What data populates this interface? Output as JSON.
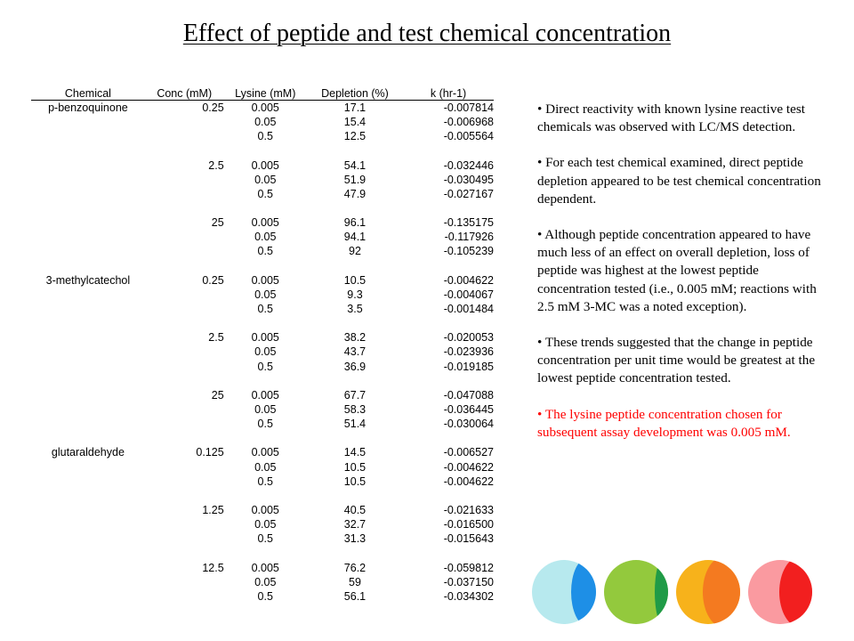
{
  "title": "Effect of peptide and test chemical concentration",
  "table": {
    "headers": [
      "Chemical",
      "Conc (mM)",
      "Lysine (mM)",
      "Depletion (%)",
      "k (hr-1)"
    ],
    "groups": [
      {
        "chemical": "p-benzoquinone",
        "conc": "0.25",
        "rows": [
          [
            "0.005",
            "17.1",
            "-0.007814"
          ],
          [
            "0.05",
            "15.4",
            "-0.006968"
          ],
          [
            "0.5",
            "12.5",
            "-0.005564"
          ]
        ]
      },
      {
        "chemical": "",
        "conc": "2.5",
        "rows": [
          [
            "0.005",
            "54.1",
            "-0.032446"
          ],
          [
            "0.05",
            "51.9",
            "-0.030495"
          ],
          [
            "0.5",
            "47.9",
            "-0.027167"
          ]
        ]
      },
      {
        "chemical": "",
        "conc": "25",
        "rows": [
          [
            "0.005",
            "96.1",
            "-0.135175"
          ],
          [
            "0.05",
            "94.1",
            "-0.117926"
          ],
          [
            "0.5",
            "92",
            "-0.105239"
          ]
        ]
      },
      {
        "chemical": "3-methylcatechol",
        "conc": "0.25",
        "rows": [
          [
            "0.005",
            "10.5",
            "-0.004622"
          ],
          [
            "0.05",
            "9.3",
            "-0.004067"
          ],
          [
            "0.5",
            "3.5",
            "-0.001484"
          ]
        ]
      },
      {
        "chemical": "",
        "conc": "2.5",
        "rows": [
          [
            "0.005",
            "38.2",
            "-0.020053"
          ],
          [
            "0.05",
            "43.7",
            "-0.023936"
          ],
          [
            "0.5",
            "36.9",
            "-0.019185"
          ]
        ]
      },
      {
        "chemical": "",
        "conc": "25",
        "rows": [
          [
            "0.005",
            "67.7",
            "-0.047088"
          ],
          [
            "0.05",
            "58.3",
            "-0.036445"
          ],
          [
            "0.5",
            "51.4",
            "-0.030064"
          ]
        ]
      },
      {
        "chemical": "glutaraldehyde",
        "conc": "0.125",
        "rows": [
          [
            "0.005",
            "14.5",
            "-0.006527"
          ],
          [
            "0.05",
            "10.5",
            "-0.004622"
          ],
          [
            "0.5",
            "10.5",
            "-0.004622"
          ]
        ]
      },
      {
        "chemical": "",
        "conc": "1.25",
        "rows": [
          [
            "0.005",
            "40.5",
            "-0.021633"
          ],
          [
            "0.05",
            "32.7",
            "-0.016500"
          ],
          [
            "0.5",
            "31.3",
            "-0.015643"
          ]
        ]
      },
      {
        "chemical": "",
        "conc": "12.5",
        "rows": [
          [
            "0.005",
            "76.2",
            "-0.059812"
          ],
          [
            "0.05",
            "59",
            "-0.037150"
          ],
          [
            "0.5",
            "56.1",
            "-0.034302"
          ]
        ]
      }
    ]
  },
  "bullets": [
    {
      "text": "• Direct reactivity with known lysine reactive test chemicals was observed with LC/MS detection.",
      "color": "#000000"
    },
    {
      "text": "• For each test chemical examined, direct peptide depletion appeared to be test chemical concentration dependent.",
      "color": "#000000"
    },
    {
      "text": "• Although peptide concentration appeared to have much less of an effect on overall depletion, loss of peptide was highest at the lowest peptide concentration tested (i.e., 0.005 mM; reactions with 2.5 mM 3-MC was a noted exception).",
      "color": "#000000"
    },
    {
      "text": "• These trends suggested that the change in peptide concentration per unit time would be greatest at the lowest peptide concentration tested.",
      "color": "#000000"
    },
    {
      "text": "• The lysine peptide concentration chosen for subsequent assay development was 0.005 mM.",
      "color": "#ff0000"
    }
  ],
  "decor_colors": {
    "circle1": [
      "#b7e9ee",
      "#1e8fe6"
    ],
    "circle2": [
      "#93c93d",
      "#1f9b47"
    ],
    "circle3": [
      "#f7b21b",
      "#f47a20"
    ],
    "circle4": [
      "#fa9aa0",
      "#f21f1f"
    ]
  }
}
